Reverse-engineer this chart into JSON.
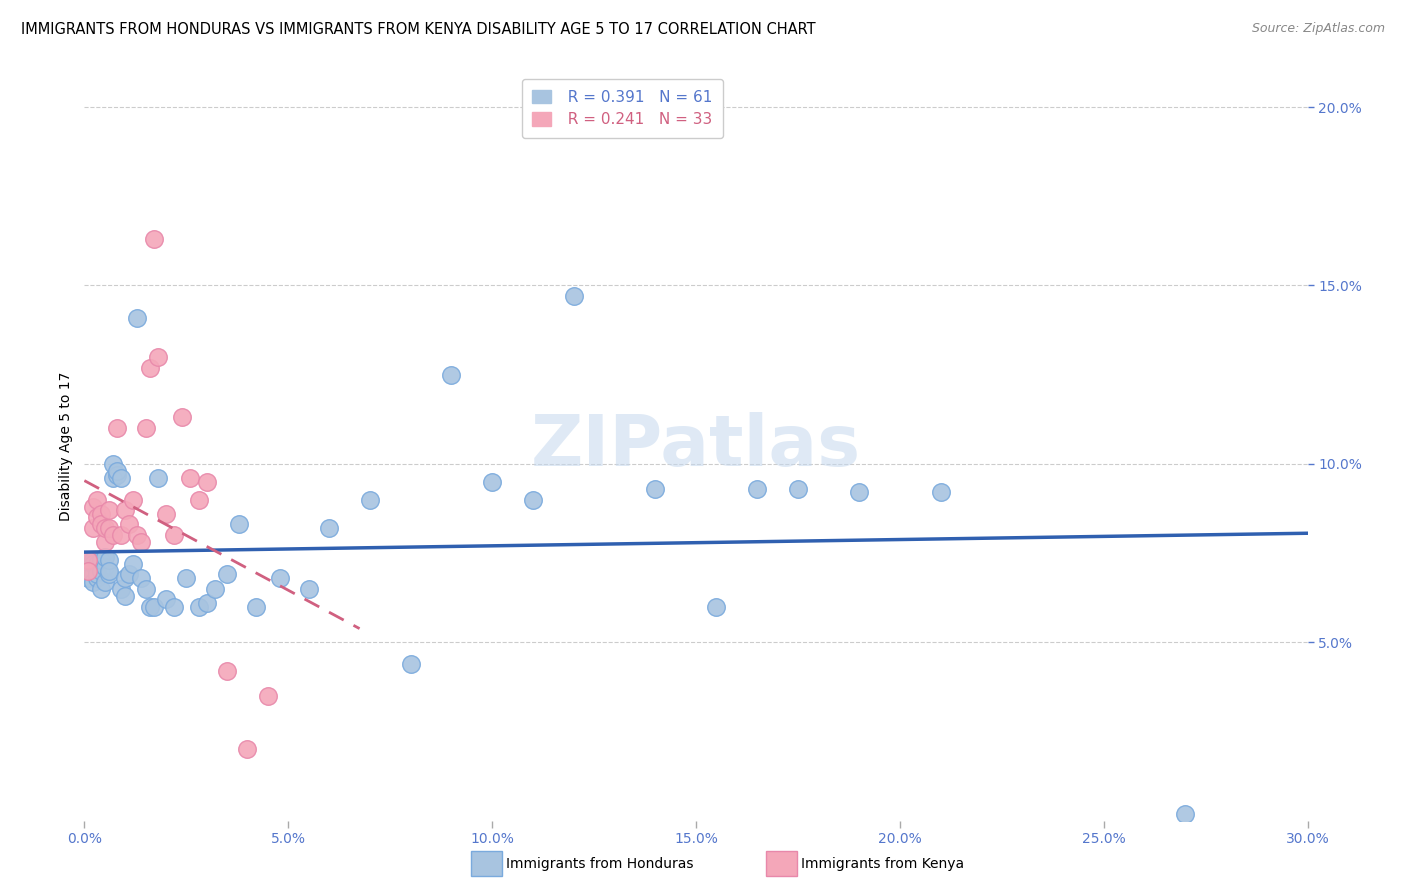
{
  "title": "IMMIGRANTS FROM HONDURAS VS IMMIGRANTS FROM KENYA DISABILITY AGE 5 TO 17 CORRELATION CHART",
  "source": "Source: ZipAtlas.com",
  "ylabel": "Disability Age 5 to 17",
  "xlim": [
    0.0,
    0.3
  ],
  "ylim": [
    0.0,
    0.21
  ],
  "xtick_positions": [
    0.0,
    0.05,
    0.1,
    0.15,
    0.2,
    0.25,
    0.3
  ],
  "xtick_labels": [
    "0.0%",
    "5.0%",
    "10.0%",
    "15.0%",
    "20.0%",
    "25.0%",
    "30.0%"
  ],
  "ytick_positions": [
    0.05,
    0.1,
    0.15,
    0.2
  ],
  "ytick_labels": [
    "5.0%",
    "10.0%",
    "15.0%",
    "20.0%"
  ],
  "legend_r1": "R = 0.391",
  "legend_n1": "N = 61",
  "legend_r2": "R = 0.241",
  "legend_n2": "N = 33",
  "color_honduras": "#a8c4e0",
  "color_kenya": "#f4a7b9",
  "color_line_honduras": "#3060b0",
  "color_line_kenya": "#d06080",
  "color_tick": "#5577cc",
  "watermark": "ZIPatlas",
  "honduras_x": [
    0.001,
    0.001,
    0.001,
    0.002,
    0.002,
    0.002,
    0.002,
    0.003,
    0.003,
    0.003,
    0.003,
    0.004,
    0.004,
    0.004,
    0.005,
    0.005,
    0.005,
    0.006,
    0.006,
    0.006,
    0.007,
    0.007,
    0.008,
    0.008,
    0.009,
    0.009,
    0.01,
    0.01,
    0.011,
    0.012,
    0.013,
    0.014,
    0.015,
    0.016,
    0.017,
    0.018,
    0.02,
    0.022,
    0.025,
    0.028,
    0.03,
    0.032,
    0.035,
    0.038,
    0.042,
    0.048,
    0.055,
    0.06,
    0.07,
    0.08,
    0.09,
    0.1,
    0.11,
    0.12,
    0.14,
    0.155,
    0.165,
    0.175,
    0.19,
    0.21,
    0.27
  ],
  "honduras_y": [
    0.073,
    0.07,
    0.068,
    0.073,
    0.069,
    0.072,
    0.067,
    0.07,
    0.072,
    0.068,
    0.069,
    0.07,
    0.065,
    0.073,
    0.067,
    0.071,
    0.074,
    0.069,
    0.073,
    0.07,
    0.096,
    0.1,
    0.097,
    0.098,
    0.065,
    0.096,
    0.068,
    0.063,
    0.069,
    0.072,
    0.141,
    0.068,
    0.065,
    0.06,
    0.06,
    0.096,
    0.062,
    0.06,
    0.068,
    0.06,
    0.061,
    0.065,
    0.069,
    0.083,
    0.06,
    0.068,
    0.065,
    0.082,
    0.09,
    0.044,
    0.125,
    0.095,
    0.09,
    0.147,
    0.093,
    0.06,
    0.093,
    0.093,
    0.092,
    0.092,
    0.002
  ],
  "kenya_x": [
    0.001,
    0.001,
    0.002,
    0.002,
    0.003,
    0.003,
    0.004,
    0.004,
    0.005,
    0.005,
    0.006,
    0.006,
    0.007,
    0.008,
    0.009,
    0.01,
    0.011,
    0.012,
    0.013,
    0.014,
    0.015,
    0.016,
    0.017,
    0.018,
    0.02,
    0.022,
    0.024,
    0.026,
    0.028,
    0.03,
    0.035,
    0.04,
    0.045
  ],
  "kenya_y": [
    0.073,
    0.07,
    0.088,
    0.082,
    0.09,
    0.085,
    0.086,
    0.083,
    0.078,
    0.082,
    0.087,
    0.082,
    0.08,
    0.11,
    0.08,
    0.087,
    0.083,
    0.09,
    0.08,
    0.078,
    0.11,
    0.127,
    0.163,
    0.13,
    0.086,
    0.08,
    0.113,
    0.096,
    0.09,
    0.095,
    0.042,
    0.02,
    0.035
  ]
}
